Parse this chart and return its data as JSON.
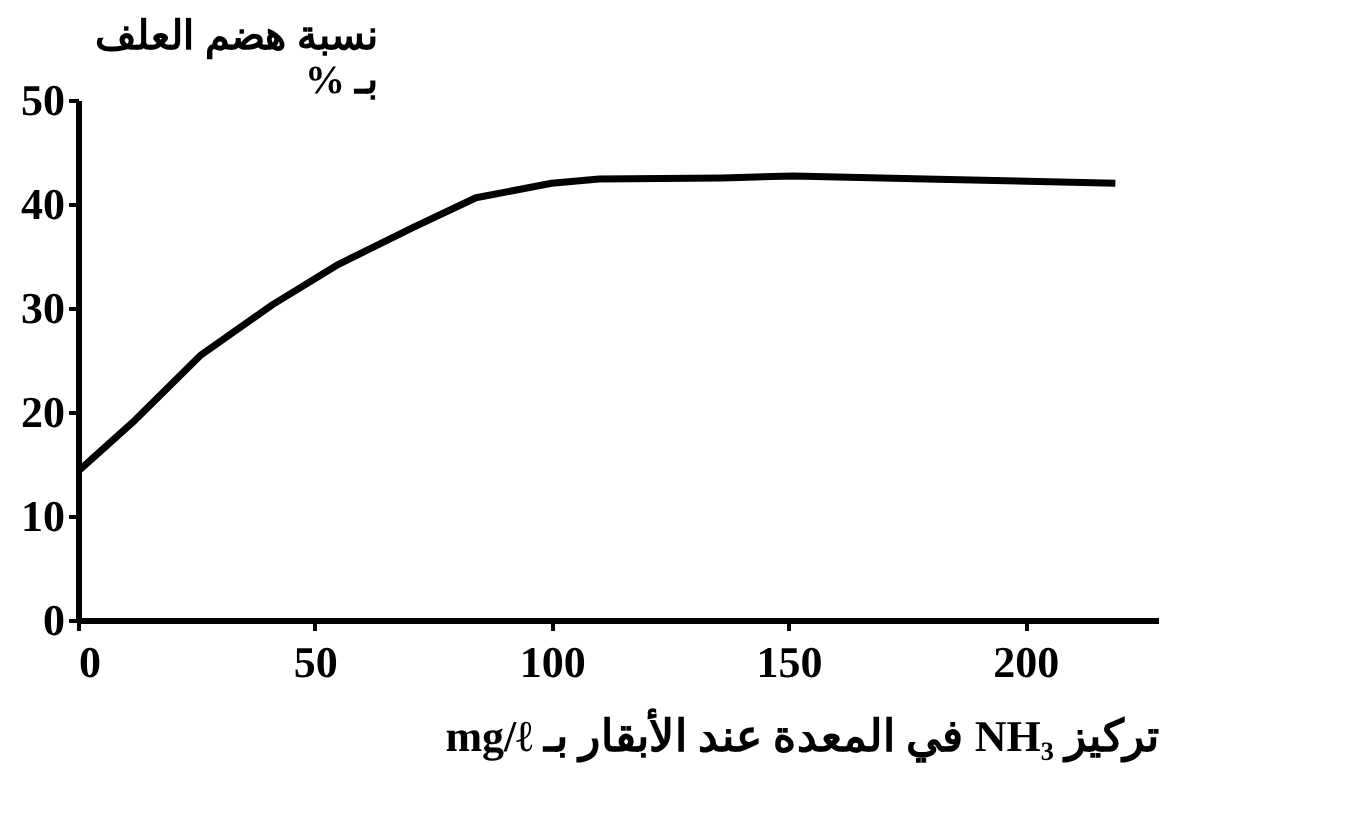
{
  "chart_data": {
    "type": "line",
    "xlabel": "تركيز NH₃ في المعدة عند الأبقار بـ mg/ℓ",
    "ylabel": "نسبة هضم العلف\nبـ %",
    "xlim": [
      0,
      228
    ],
    "xticks": [
      0,
      50,
      100,
      150,
      200
    ],
    "ylim": [
      0,
      50
    ],
    "yticks": [
      0,
      10,
      20,
      30,
      40,
      50
    ],
    "grid": false,
    "marker": "none",
    "line_style": "solid",
    "series": [
      {
        "color": "#000000",
        "x": [
          0,
          12,
          26,
          41,
          55,
          71,
          84,
          100,
          110,
          136,
          151,
          179,
          219
        ],
        "values": [
          14.3,
          19.2,
          25.5,
          30.3,
          34.2,
          37.8,
          40.6,
          42,
          42.4,
          42.5,
          42.7,
          42.4,
          42
        ]
      }
    ]
  }
}
